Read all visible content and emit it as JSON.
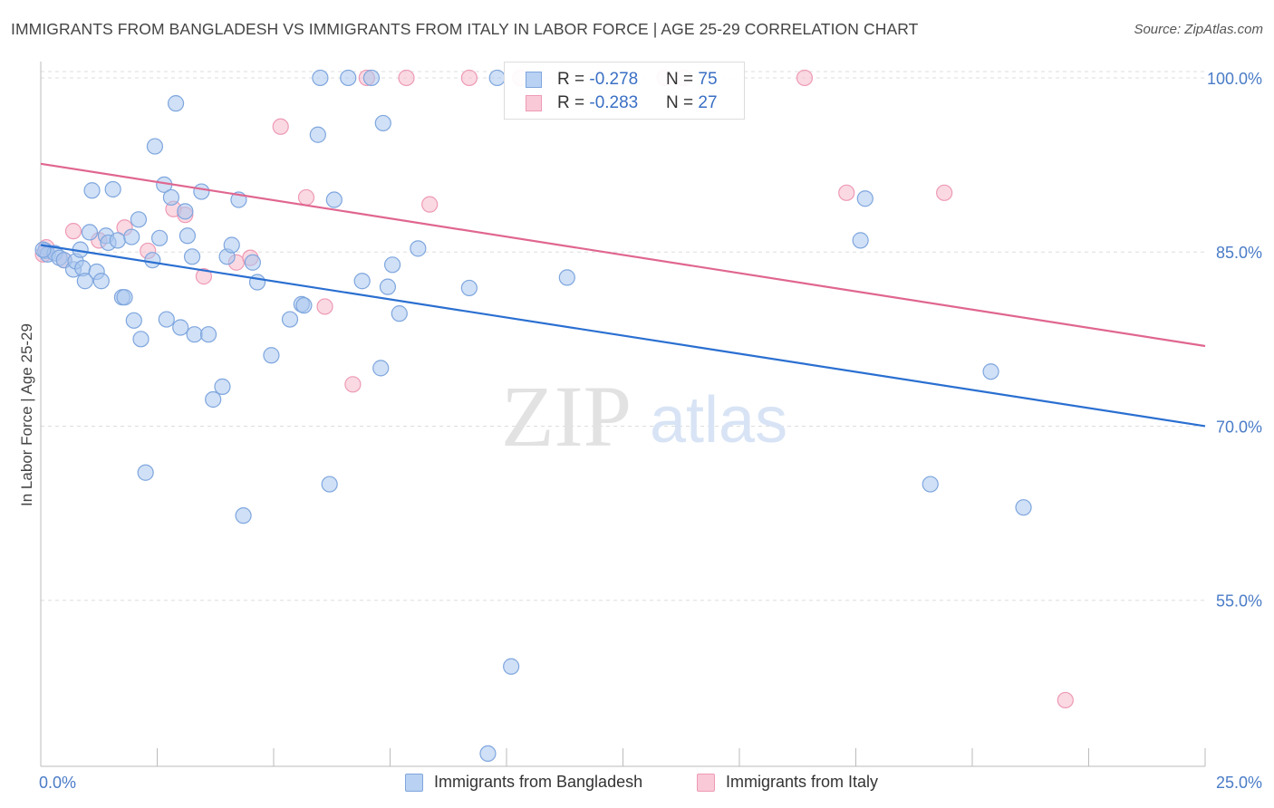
{
  "title": "IMMIGRANTS FROM BANGLADESH VS IMMIGRANTS FROM ITALY IN LABOR FORCE | AGE 25-29 CORRELATION CHART",
  "source": "Source: ZipAtlas.com",
  "watermark": {
    "zip": "ZIP",
    "atlas": "atlas"
  },
  "colors": {
    "blue_fill": "#a9c6ef",
    "blue_stroke": "#7ea6de",
    "blue_line": "#2a6fd1",
    "pink_fill": "#f6b9cc",
    "pink_stroke": "#ee9ab4",
    "pink_line": "#e0668f",
    "grid": "#dddddd",
    "tick_text": "#4a7cc7"
  },
  "legend": {
    "rows": [
      {
        "r_label": "R = ",
        "r_value": "-0.278",
        "n_label": "N = ",
        "n_value": "75"
      },
      {
        "r_label": "R = ",
        "r_value": "-0.283",
        "n_label": "N = ",
        "n_value": "27"
      }
    ]
  },
  "bottom_legend": {
    "blue": "Immigrants from Bangladesh",
    "pink": "Immigrants from Italy"
  },
  "chart_data": {
    "type": "scatter",
    "title": "IMMIGRANTS FROM BANGLADESH VS IMMIGRANTS FROM ITALY IN LABOR FORCE | AGE 25-29 CORRELATION CHART",
    "xlabel": "",
    "ylabel": "In Labor Force | Age 25-29",
    "xlim": [
      0,
      25
    ],
    "ylim": [
      40.7,
      101.4
    ],
    "x_tick_labels": [
      "0.0%",
      "25.0%"
    ],
    "y_ticks": [
      100,
      85,
      70,
      55
    ],
    "y_tick_labels": [
      "100.0%",
      "85.0%",
      "70.0%",
      "55.0%"
    ],
    "grid": true,
    "legend_position": "top-center",
    "series": [
      {
        "name": "Immigrants from Bangladesh",
        "r": -0.278,
        "n": 75,
        "trend": [
          [
            0.0,
            85.6
          ],
          [
            25.0,
            70.0
          ]
        ],
        "points": [
          [
            0.1,
            85.1
          ],
          [
            0.15,
            84.8
          ],
          [
            0.3,
            84.9
          ],
          [
            0.4,
            84.5
          ],
          [
            0.5,
            84.3
          ],
          [
            0.7,
            83.5
          ],
          [
            0.75,
            84.2
          ],
          [
            0.85,
            85.2
          ],
          [
            0.9,
            83.6
          ],
          [
            0.95,
            82.5
          ],
          [
            1.05,
            86.7
          ],
          [
            1.1,
            90.3
          ],
          [
            1.2,
            83.3
          ],
          [
            1.3,
            82.5
          ],
          [
            1.4,
            86.4
          ],
          [
            1.45,
            85.8
          ],
          [
            1.55,
            90.4
          ],
          [
            1.65,
            86.0
          ],
          [
            1.75,
            81.1
          ],
          [
            1.8,
            81.1
          ],
          [
            1.95,
            86.3
          ],
          [
            2.0,
            79.1
          ],
          [
            2.1,
            87.8
          ],
          [
            2.15,
            77.5
          ],
          [
            2.25,
            66.0
          ],
          [
            2.4,
            84.3
          ],
          [
            2.45,
            94.1
          ],
          [
            2.55,
            86.2
          ],
          [
            2.65,
            90.8
          ],
          [
            2.7,
            79.2
          ],
          [
            2.8,
            89.7
          ],
          [
            2.9,
            97.8
          ],
          [
            3.0,
            78.5
          ],
          [
            3.1,
            88.5
          ],
          [
            3.15,
            86.4
          ],
          [
            3.25,
            84.6
          ],
          [
            3.3,
            77.9
          ],
          [
            3.45,
            90.2
          ],
          [
            3.6,
            77.9
          ],
          [
            3.7,
            72.3
          ],
          [
            3.9,
            73.4
          ],
          [
            4.0,
            84.6
          ],
          [
            4.1,
            85.6
          ],
          [
            4.25,
            89.5
          ],
          [
            4.35,
            62.3
          ],
          [
            4.55,
            84.1
          ],
          [
            4.65,
            82.4
          ],
          [
            4.95,
            76.1
          ],
          [
            5.35,
            79.2
          ],
          [
            5.6,
            80.5
          ],
          [
            5.65,
            80.4
          ],
          [
            5.95,
            95.1
          ],
          [
            6.0,
            100.0
          ],
          [
            6.2,
            65.0
          ],
          [
            6.3,
            89.5
          ],
          [
            6.6,
            100.0
          ],
          [
            6.9,
            82.5
          ],
          [
            7.1,
            100.0
          ],
          [
            7.3,
            75.0
          ],
          [
            7.35,
            96.1
          ],
          [
            7.45,
            82.0
          ],
          [
            7.55,
            83.9
          ],
          [
            7.7,
            79.7
          ],
          [
            8.1,
            85.3
          ],
          [
            9.2,
            81.9
          ],
          [
            9.6,
            41.8
          ],
          [
            9.8,
            100.0
          ],
          [
            10.1,
            49.3
          ],
          [
            11.3,
            82.8
          ],
          [
            17.6,
            86.0
          ],
          [
            17.7,
            89.6
          ],
          [
            19.1,
            65.0
          ],
          [
            20.4,
            74.7
          ],
          [
            21.1,
            63.0
          ],
          [
            0.05,
            85.2
          ]
        ]
      },
      {
        "name": "Immigrants from Italy",
        "r": -0.283,
        "n": 27,
        "trend": [
          [
            0.0,
            92.6
          ],
          [
            25.0,
            76.9
          ]
        ],
        "points": [
          [
            0.05,
            84.8
          ],
          [
            0.12,
            85.4
          ],
          [
            0.5,
            84.3
          ],
          [
            0.7,
            86.8
          ],
          [
            1.25,
            86.0
          ],
          [
            1.8,
            87.1
          ],
          [
            2.3,
            85.1
          ],
          [
            2.85,
            88.7
          ],
          [
            3.1,
            88.2
          ],
          [
            3.5,
            82.9
          ],
          [
            4.2,
            84.1
          ],
          [
            4.5,
            84.5
          ],
          [
            5.15,
            95.8
          ],
          [
            5.7,
            89.7
          ],
          [
            6.1,
            80.3
          ],
          [
            6.7,
            73.6
          ],
          [
            7.0,
            100.0
          ],
          [
            7.85,
            100.0
          ],
          [
            8.35,
            89.1
          ],
          [
            9.2,
            100.0
          ],
          [
            10.3,
            100.0
          ],
          [
            13.4,
            100.0
          ],
          [
            13.8,
            100.0
          ],
          [
            16.4,
            100.0
          ],
          [
            17.3,
            90.1
          ],
          [
            19.4,
            90.1
          ],
          [
            22.0,
            46.4
          ]
        ]
      }
    ]
  }
}
